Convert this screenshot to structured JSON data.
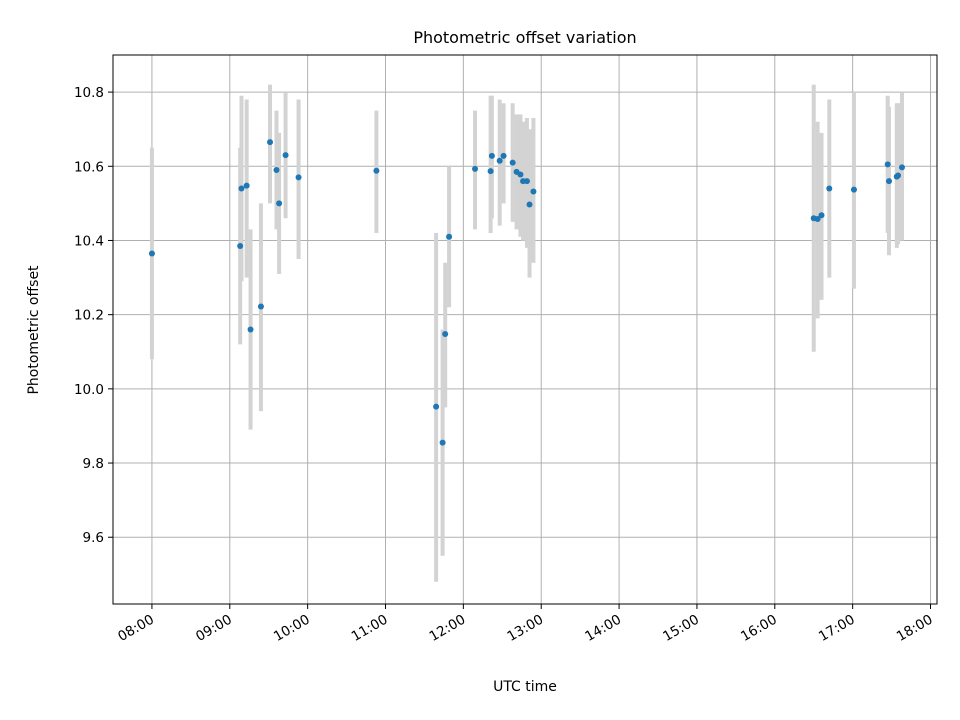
{
  "chart_data": {
    "type": "scatter",
    "title": "Photometric offset variation",
    "xlabel": "UTC time",
    "ylabel": "Photometric offset",
    "x_ticks": [
      "08:00",
      "09:00",
      "10:00",
      "11:00",
      "12:00",
      "13:00",
      "14:00",
      "15:00",
      "16:00",
      "17:00",
      "18:00"
    ],
    "y_ticks": [
      "9.6",
      "9.8",
      "10.0",
      "10.2",
      "10.4",
      "10.6",
      "10.8"
    ],
    "xlim": [
      "07:30",
      "18:05"
    ],
    "ylim": [
      9.42,
      10.9
    ],
    "grid": true,
    "point_color": "#1f77b4",
    "errorbar_color": "#d3d3d3",
    "points": [
      {
        "x": "08:00",
        "y": 10.365,
        "ylow": 10.08,
        "yhigh": 10.65
      },
      {
        "x": "09:08",
        "y": 10.385,
        "ylow": 10.12,
        "yhigh": 10.65
      },
      {
        "x": "09:09",
        "y": 10.54,
        "ylow": 10.29,
        "yhigh": 10.79
      },
      {
        "x": "09:13",
        "y": 10.548,
        "ylow": 10.3,
        "yhigh": 10.78
      },
      {
        "x": "09:16",
        "y": 10.16,
        "ylow": 9.89,
        "yhigh": 10.43
      },
      {
        "x": "09:24",
        "y": 10.222,
        "ylow": 9.94,
        "yhigh": 10.5
      },
      {
        "x": "09:31",
        "y": 10.665,
        "ylow": 10.5,
        "yhigh": 10.82
      },
      {
        "x": "09:36",
        "y": 10.59,
        "ylow": 10.43,
        "yhigh": 10.75
      },
      {
        "x": "09:38",
        "y": 10.5,
        "ylow": 10.31,
        "yhigh": 10.69
      },
      {
        "x": "09:43",
        "y": 10.63,
        "ylow": 10.46,
        "yhigh": 10.8
      },
      {
        "x": "09:53",
        "y": 10.57,
        "ylow": 10.35,
        "yhigh": 10.78
      },
      {
        "x": "10:53",
        "y": 10.588,
        "ylow": 10.42,
        "yhigh": 10.75
      },
      {
        "x": "11:39",
        "y": 9.952,
        "ylow": 9.48,
        "yhigh": 10.42
      },
      {
        "x": "11:44",
        "y": 9.855,
        "ylow": 9.55,
        "yhigh": 10.16
      },
      {
        "x": "11:46",
        "y": 10.148,
        "ylow": 9.95,
        "yhigh": 10.34
      },
      {
        "x": "11:49",
        "y": 10.41,
        "ylow": 10.22,
        "yhigh": 10.6
      },
      {
        "x": "12:09",
        "y": 10.593,
        "ylow": 10.43,
        "yhigh": 10.75
      },
      {
        "x": "12:21",
        "y": 10.587,
        "ylow": 10.42,
        "yhigh": 10.79
      },
      {
        "x": "12:22",
        "y": 10.628,
        "ylow": 10.46,
        "yhigh": 10.79
      },
      {
        "x": "12:28",
        "y": 10.615,
        "ylow": 10.44,
        "yhigh": 10.78
      },
      {
        "x": "12:31",
        "y": 10.628,
        "ylow": 10.5,
        "yhigh": 10.77
      },
      {
        "x": "12:38",
        "y": 10.61,
        "ylow": 10.45,
        "yhigh": 10.77
      },
      {
        "x": "12:41",
        "y": 10.585,
        "ylow": 10.43,
        "yhigh": 10.74
      },
      {
        "x": "12:44",
        "y": 10.578,
        "ylow": 10.41,
        "yhigh": 10.74
      },
      {
        "x": "12:46",
        "y": 10.56,
        "ylow": 10.4,
        "yhigh": 10.72
      },
      {
        "x": "12:49",
        "y": 10.56,
        "ylow": 10.38,
        "yhigh": 10.73
      },
      {
        "x": "12:51",
        "y": 10.497,
        "ylow": 10.3,
        "yhigh": 10.7
      },
      {
        "x": "12:54",
        "y": 10.532,
        "ylow": 10.34,
        "yhigh": 10.73
      },
      {
        "x": "16:30",
        "y": 10.46,
        "ylow": 10.1,
        "yhigh": 10.82
      },
      {
        "x": "16:33",
        "y": 10.458,
        "ylow": 10.19,
        "yhigh": 10.72
      },
      {
        "x": "16:36",
        "y": 10.468,
        "ylow": 10.24,
        "yhigh": 10.69
      },
      {
        "x": "16:42",
        "y": 10.54,
        "ylow": 10.3,
        "yhigh": 10.78
      },
      {
        "x": "17:01",
        "y": 10.537,
        "ylow": 10.27,
        "yhigh": 10.8
      },
      {
        "x": "17:27",
        "y": 10.605,
        "ylow": 10.42,
        "yhigh": 10.79
      },
      {
        "x": "17:28",
        "y": 10.56,
        "ylow": 10.36,
        "yhigh": 10.76
      },
      {
        "x": "17:34",
        "y": 10.572,
        "ylow": 10.38,
        "yhigh": 10.77
      },
      {
        "x": "17:35",
        "y": 10.575,
        "ylow": 10.39,
        "yhigh": 10.77
      },
      {
        "x": "17:38",
        "y": 10.597,
        "ylow": 10.4,
        "yhigh": 10.8
      }
    ]
  }
}
